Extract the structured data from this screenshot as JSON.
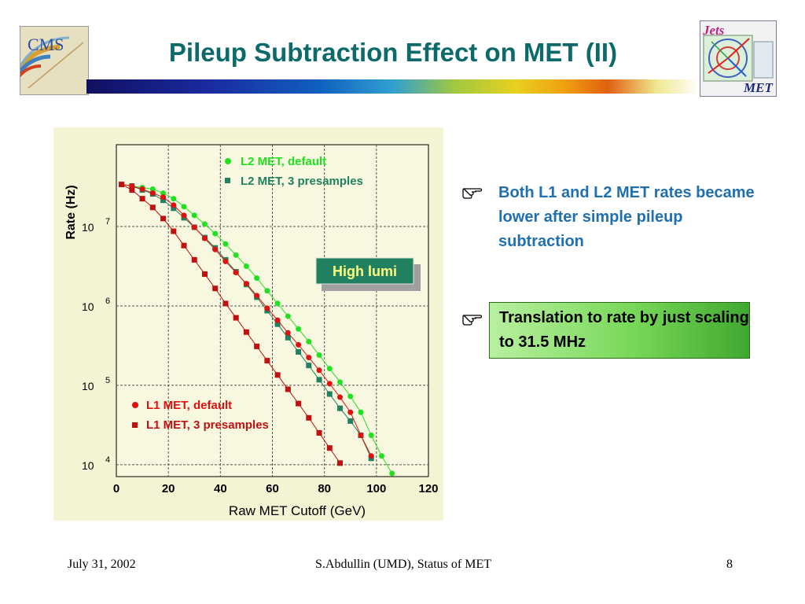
{
  "slide": {
    "title": "Pileup Subtraction Effect on MET (II)",
    "logo_left_text": "CMS",
    "logo_right_top": "Jets",
    "logo_right_bottom": "MET",
    "bullets": [
      {
        "text": "Both L1 and L2 MET rates became lower after simple pileup subtraction"
      },
      {
        "text": "Translation to rate by just scaling to 31.5 MHz"
      }
    ],
    "footer": {
      "date": "July 31, 2002",
      "center": "S.Abdullin (UMD),  Status of MET",
      "page": "8"
    },
    "colors": {
      "title": "#0d6a6a",
      "bullet1": "#2070b0",
      "accent": "#78d858"
    }
  },
  "chart_data": {
    "type": "scatter",
    "xlabel": "Raw MET Cutoff (GeV)",
    "ylabel": "Rate (Hz)",
    "xlim": [
      0,
      120
    ],
    "ylim_log10": [
      3.85,
      8.03
    ],
    "x_ticks": [
      "0",
      "20",
      "40",
      "60",
      "80",
      "100",
      "120"
    ],
    "y_ticks": [
      {
        "base": "10",
        "exp": "4",
        "log10": 4
      },
      {
        "base": "10",
        "exp": "5",
        "log10": 5
      },
      {
        "base": "10",
        "exp": "6",
        "log10": 6
      },
      {
        "base": "10",
        "exp": "7",
        "log10": 7
      }
    ],
    "annotation": "High lumi",
    "series": [
      {
        "name": "L2 MET, default",
        "marker": "circle",
        "color": "#20e020",
        "x": [
          2,
          6,
          10,
          14,
          18,
          22,
          26,
          30,
          34,
          38,
          42,
          46,
          50,
          54,
          58,
          62,
          66,
          70,
          74,
          78,
          82,
          86,
          90,
          94,
          98,
          102,
          106
        ],
        "log10_y": [
          7.53,
          7.51,
          7.49,
          7.47,
          7.42,
          7.35,
          7.25,
          7.14,
          7.03,
          6.91,
          6.78,
          6.64,
          6.5,
          6.35,
          6.19,
          6.03,
          5.87,
          5.71,
          5.55,
          5.38,
          5.21,
          5.04,
          4.86,
          4.66,
          4.37,
          4.11,
          3.89
        ]
      },
      {
        "name": "L2 MET, 3 presamples",
        "marker": "square",
        "color": "#208060",
        "x": [
          2,
          6,
          10,
          14,
          18,
          22,
          26,
          30,
          34,
          38,
          42,
          46,
          50,
          54,
          58,
          62,
          66,
          70,
          74,
          78,
          82,
          86,
          90,
          94,
          98
        ],
        "log10_y": [
          7.53,
          7.51,
          7.46,
          7.41,
          7.33,
          7.23,
          7.11,
          6.99,
          6.86,
          6.73,
          6.58,
          6.43,
          6.27,
          6.11,
          5.94,
          5.77,
          5.6,
          5.42,
          5.25,
          5.07,
          4.89,
          4.71,
          4.55,
          4.37,
          4.08
        ]
      },
      {
        "name": "L1 MET, default",
        "marker": "circle",
        "color": "#e01010",
        "x": [
          2,
          6,
          10,
          14,
          18,
          22,
          26,
          30,
          34,
          38,
          42,
          46,
          50,
          54,
          58,
          62,
          66,
          70,
          74,
          78,
          82,
          86,
          90,
          94,
          98
        ],
        "log10_y": [
          7.53,
          7.51,
          7.47,
          7.42,
          7.37,
          7.27,
          7.14,
          6.99,
          6.85,
          6.71,
          6.56,
          6.42,
          6.28,
          6.13,
          5.97,
          5.82,
          5.66,
          5.51,
          5.35,
          5.19,
          5.02,
          4.85,
          4.66,
          4.37,
          4.11
        ]
      },
      {
        "name": "L1 MET, 3 presamples",
        "marker": "square",
        "color": "#c01010",
        "x": [
          2,
          6,
          10,
          14,
          18,
          22,
          26,
          30,
          34,
          38,
          42,
          46,
          50,
          54,
          58,
          62,
          66,
          70,
          74,
          78,
          82,
          86
        ],
        "log10_y": [
          7.53,
          7.46,
          7.35,
          7.24,
          7.1,
          6.94,
          6.76,
          6.58,
          6.4,
          6.22,
          6.03,
          5.85,
          5.67,
          5.49,
          5.31,
          5.13,
          4.95,
          4.77,
          4.59,
          4.4,
          4.21,
          4.02
        ]
      }
    ]
  }
}
